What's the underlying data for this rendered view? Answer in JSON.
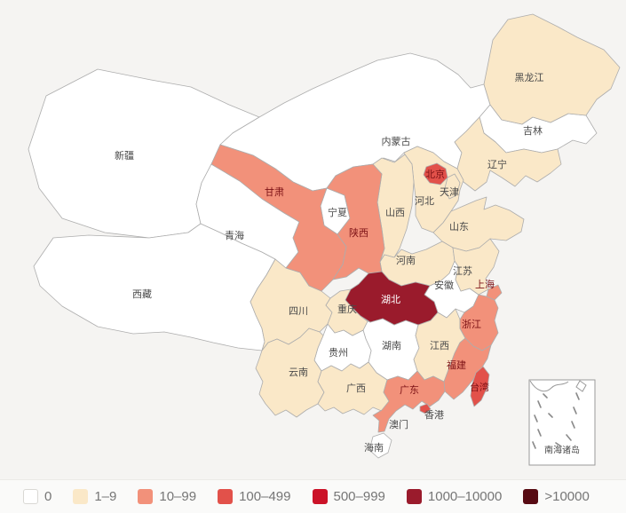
{
  "page": {
    "background": "#f5f4f2"
  },
  "label_colors": {
    "default": "#4a4a4a",
    "red": "#7d1216",
    "white": "#ffffff"
  },
  "chart_data": {
    "type": "choropleth",
    "title": "",
    "legend_position": "bottom",
    "legend": [
      {
        "label": "0",
        "color": "#ffffff"
      },
      {
        "label": "1–9",
        "color": "#fae8c8"
      },
      {
        "label": "10–99",
        "color": "#f2917a"
      },
      {
        "label": "100–499",
        "color": "#e2514a"
      },
      {
        "label": "500–999",
        "color": "#cb1228"
      },
      {
        "label": "1000–10000",
        "color": "#9a1b2c"
      },
      {
        "label": ">10000",
        "color": "#570b13"
      }
    ],
    "regions": [
      {
        "id": "xinjiang",
        "name": "新疆",
        "category": 0,
        "label_style": "default"
      },
      {
        "id": "xizang",
        "name": "西藏",
        "category": 0,
        "label_style": "default"
      },
      {
        "id": "qinghai",
        "name": "青海",
        "category": 0,
        "label_style": "default"
      },
      {
        "id": "neimenggu",
        "name": "内蒙古",
        "category": 0,
        "label_style": "default"
      },
      {
        "id": "jilin",
        "name": "吉林",
        "category": 0,
        "label_style": "default"
      },
      {
        "id": "ningxia",
        "name": "宁夏",
        "category": 0,
        "label_style": "default"
      },
      {
        "id": "anhui",
        "name": "安徽",
        "category": 0,
        "label_style": "default"
      },
      {
        "id": "hunan",
        "name": "湖南",
        "category": 0,
        "label_style": "default"
      },
      {
        "id": "guizhou",
        "name": "贵州",
        "category": 0,
        "label_style": "default"
      },
      {
        "id": "hainan",
        "name": "海南",
        "category": 0,
        "label_style": "default"
      },
      {
        "id": "aomen",
        "name": "澳门",
        "category": 0,
        "label_style": "default"
      },
      {
        "id": "heilongjiang",
        "name": "黑龙江",
        "category": 1,
        "label_style": "default"
      },
      {
        "id": "liaoning",
        "name": "辽宁",
        "category": 1,
        "label_style": "default"
      },
      {
        "id": "hebei",
        "name": "河北",
        "category": 1,
        "label_style": "default"
      },
      {
        "id": "tianjin",
        "name": "天津",
        "category": 1,
        "label_style": "default"
      },
      {
        "id": "shanxi",
        "name": "山西",
        "category": 1,
        "label_style": "default"
      },
      {
        "id": "shandong",
        "name": "山东",
        "category": 1,
        "label_style": "default"
      },
      {
        "id": "henan",
        "name": "河南",
        "category": 1,
        "label_style": "default"
      },
      {
        "id": "jiangsu",
        "name": "江苏",
        "category": 1,
        "label_style": "default"
      },
      {
        "id": "sichuan",
        "name": "四川",
        "category": 1,
        "label_style": "default"
      },
      {
        "id": "chongqing",
        "name": "重庆",
        "category": 1,
        "label_style": "default"
      },
      {
        "id": "jiangxi",
        "name": "江西",
        "category": 1,
        "label_style": "default"
      },
      {
        "id": "yunnan",
        "name": "云南",
        "category": 1,
        "label_style": "default"
      },
      {
        "id": "guangxi",
        "name": "广西",
        "category": 1,
        "label_style": "default"
      },
      {
        "id": "gansu",
        "name": "甘肃",
        "category": 2,
        "label_style": "red"
      },
      {
        "id": "shaanxi",
        "name": "陕西",
        "category": 2,
        "label_style": "red"
      },
      {
        "id": "zhejiang",
        "name": "浙江",
        "category": 2,
        "label_style": "red"
      },
      {
        "id": "fujian",
        "name": "福建",
        "category": 2,
        "label_style": "red"
      },
      {
        "id": "guangdong",
        "name": "广东",
        "category": 2,
        "label_style": "red"
      },
      {
        "id": "shanghai",
        "name": "上海",
        "category": 2,
        "label_style": "red"
      },
      {
        "id": "beijing",
        "name": "北京",
        "category": 3,
        "label_style": "red"
      },
      {
        "id": "taiwan",
        "name": "台湾",
        "category": 3,
        "label_style": "red"
      },
      {
        "id": "hongkong",
        "name": "香港",
        "category": 3,
        "label_style": "default"
      },
      {
        "id": "hubei",
        "name": "湖北",
        "category": 5,
        "label_style": "white"
      }
    ],
    "inset_label": "南海诸岛"
  }
}
